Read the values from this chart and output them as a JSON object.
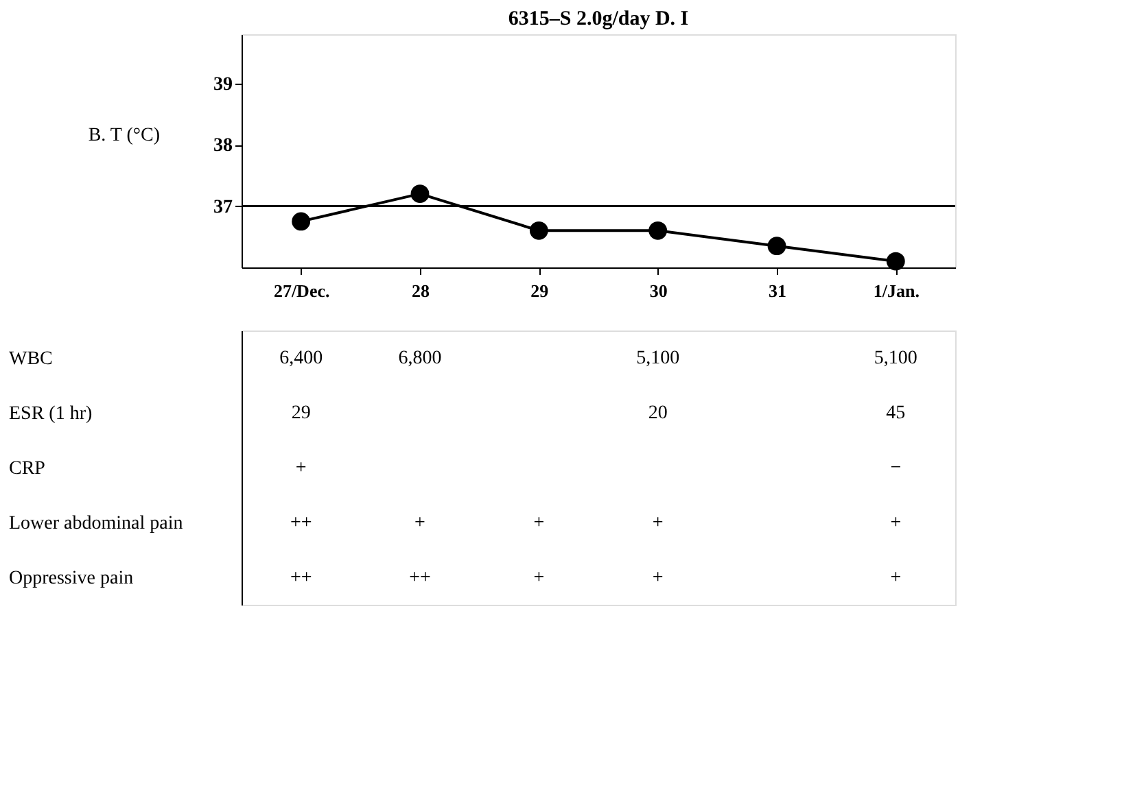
{
  "chart_data": [
    {
      "type": "line",
      "title": "6315–S 2.0g/day D. I",
      "ylabel": "B. T (°C)",
      "categories": [
        "27/Dec.",
        "28",
        "29",
        "30",
        "31",
        "1/Jan."
      ],
      "series": [
        {
          "color": "#000000",
          "values": [
            36.75,
            37.2,
            36.6,
            36.6,
            36.35,
            36.1
          ]
        }
      ],
      "ylim": [
        36.0,
        39.8
      ],
      "yticks": [
        37,
        38,
        39
      ],
      "grid": false,
      "marker": "circle",
      "line_style": "solid",
      "ref_lines": [
        {
          "axis": "y",
          "value": 37,
          "color": "#000000"
        }
      ]
    },
    {
      "type": "other",
      "y_categories": [
        "WBC",
        "ESR (1 hr)",
        "CRP",
        "Lower abdominal pain",
        "Oppressive pain"
      ],
      "cell_labels": [
        [
          "6,400",
          "6,800",
          null,
          "5,100",
          null,
          "5,100"
        ],
        [
          "29",
          null,
          null,
          "20",
          null,
          "45"
        ],
        [
          "+",
          null,
          null,
          null,
          null,
          "−"
        ],
        [
          "++",
          "+",
          "+",
          "+",
          null,
          "+"
        ],
        [
          "++",
          "++",
          "+",
          "+",
          null,
          "+"
        ]
      ]
    }
  ]
}
